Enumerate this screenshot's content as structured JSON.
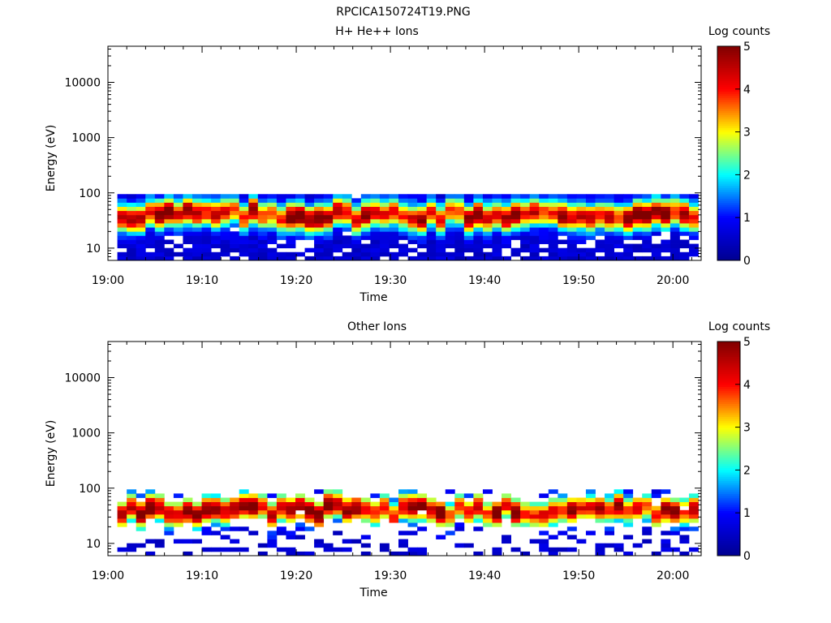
{
  "page_title": "RPCICA150724T19.PNG",
  "chart_data": [
    {
      "type": "heatmap",
      "title": "H+ He++ Ions",
      "xlabel": "Time",
      "ylabel": "Energy (eV)",
      "x_ticks": [
        "19:00",
        "19:10",
        "19:20",
        "19:30",
        "19:40",
        "19:50",
        "20:00"
      ],
      "x_range": [
        "19:00",
        "20:03"
      ],
      "y_scale": "log",
      "y_ticks": [
        10,
        100,
        1000,
        10000
      ],
      "y_tick_labels": [
        "10",
        "100",
        "1000",
        "10000"
      ],
      "y_range": [
        6,
        45000
      ],
      "data_energy_range_eV": [
        6,
        95
      ],
      "peak_energy_eV": 40,
      "colorbar": {
        "label": "Log counts",
        "ticks": [
          "0",
          "1",
          "2",
          "3",
          "4",
          "5"
        ],
        "range": [
          0,
          5
        ]
      },
      "coverage": "dense",
      "colormap": [
        "#00008f",
        "#0000ff",
        "#00ffff",
        "#ffff00",
        "#ff0000",
        "#800000"
      ]
    },
    {
      "type": "heatmap",
      "title": "Other Ions",
      "xlabel": "Time",
      "ylabel": "Energy (eV)",
      "x_ticks": [
        "19:00",
        "19:10",
        "19:20",
        "19:30",
        "19:40",
        "19:50",
        "20:00"
      ],
      "x_range": [
        "19:00",
        "20:03"
      ],
      "y_scale": "log",
      "y_ticks": [
        10,
        100,
        1000,
        10000
      ],
      "y_tick_labels": [
        "10",
        "100",
        "1000",
        "10000"
      ],
      "y_range": [
        6,
        45000
      ],
      "data_energy_range_eV": [
        6,
        95
      ],
      "peak_energy_eV": 40,
      "colorbar": {
        "label": "Log counts",
        "ticks": [
          "0",
          "1",
          "2",
          "3",
          "4",
          "5"
        ],
        "range": [
          0,
          5
        ]
      },
      "coverage": "sparse",
      "colormap": [
        "#00008f",
        "#0000ff",
        "#00ffff",
        "#ffff00",
        "#ff0000",
        "#800000"
      ]
    }
  ]
}
